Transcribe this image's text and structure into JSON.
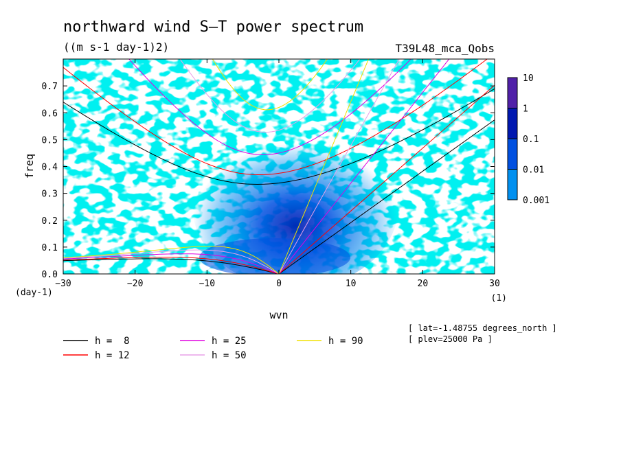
{
  "chart_data": {
    "type": "heatmap",
    "title": "northward wind S–T power spectrum",
    "subtitle": "((m s-1 day-1)2)",
    "run_label": "T39L48_mca_Qobs",
    "xlabel": "wvn",
    "ylabel": "freq",
    "x_unit": "(1)",
    "y_unit": "(day-1)",
    "xlim": [
      -30,
      30
    ],
    "ylim": [
      0,
      0.8
    ],
    "x_ticks": [
      "−30",
      "−20",
      "−10",
      "0",
      "10",
      "20",
      "30"
    ],
    "y_ticks": [
      "0.0",
      "0.1",
      "0.2",
      "0.3",
      "0.4",
      "0.5",
      "0.6",
      "0.7"
    ],
    "colorbar": {
      "labels": [
        "10",
        "1",
        "0.1",
        "0.01",
        "0.001"
      ],
      "levels": [
        0.001,
        0.01,
        0.1,
        1,
        10
      ],
      "colors": [
        "#00f0f0",
        "#0090f0",
        "#0050e0",
        "#0018b0",
        "#5020a8"
      ]
    },
    "series": [
      {
        "name": "h =  8",
        "h": 8,
        "color": "#000000"
      },
      {
        "name": "h = 12",
        "h": 12,
        "color": "#ff0000"
      },
      {
        "name": "h = 25",
        "h": 25,
        "color": "#e000e0"
      },
      {
        "name": "h = 50",
        "h": 50,
        "color": "#e8a0e8"
      },
      {
        "name": "h = 90",
        "h": 90,
        "color": "#f0e000"
      }
    ],
    "annotations": [
      "[ lat=-1.48755 degrees_north ]",
      "[ plev=25000 Pa ]"
    ]
  }
}
